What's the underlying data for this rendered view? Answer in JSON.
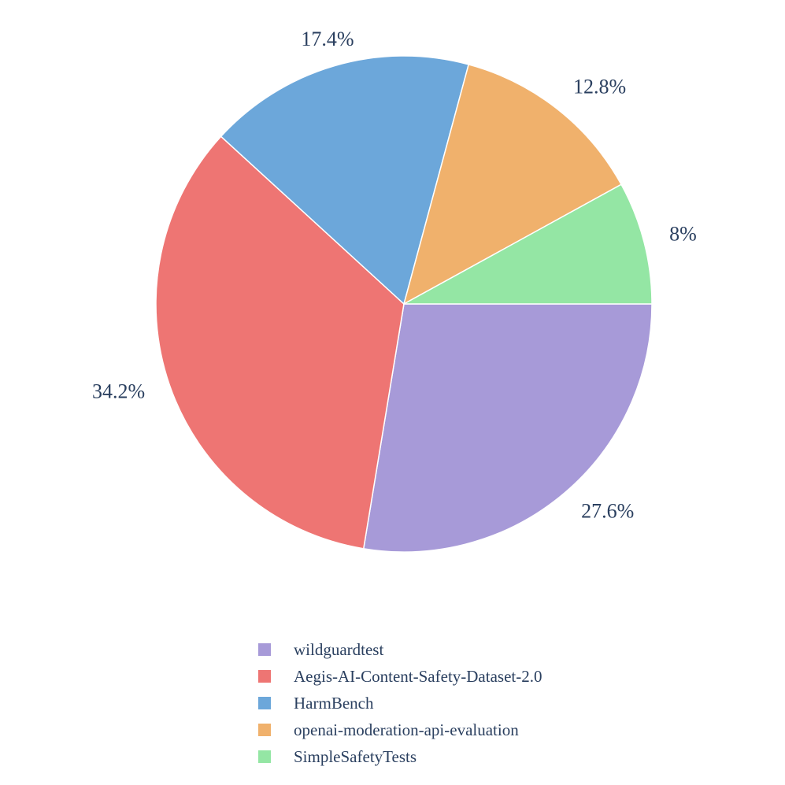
{
  "chart_data": {
    "type": "pie",
    "categories": [
      "wildguardtest",
      "Aegis-AI-Content-Safety-Dataset-2.0",
      "HarmBench",
      "openai-moderation-api-evaluation",
      "SimpleSafetyTests"
    ],
    "values": [
      27.6,
      34.2,
      17.4,
      12.8,
      8.0
    ],
    "labels": [
      "27.6%",
      "34.2%",
      "17.4%",
      "12.8%",
      "8%"
    ],
    "colors": [
      "#a79ad8",
      "#ee7573",
      "#6ca7da",
      "#f0b16c",
      "#94e6a4"
    ],
    "direction": "clockwise",
    "start": "3 o'clock",
    "legend_position": "bottom-center",
    "title": ""
  }
}
